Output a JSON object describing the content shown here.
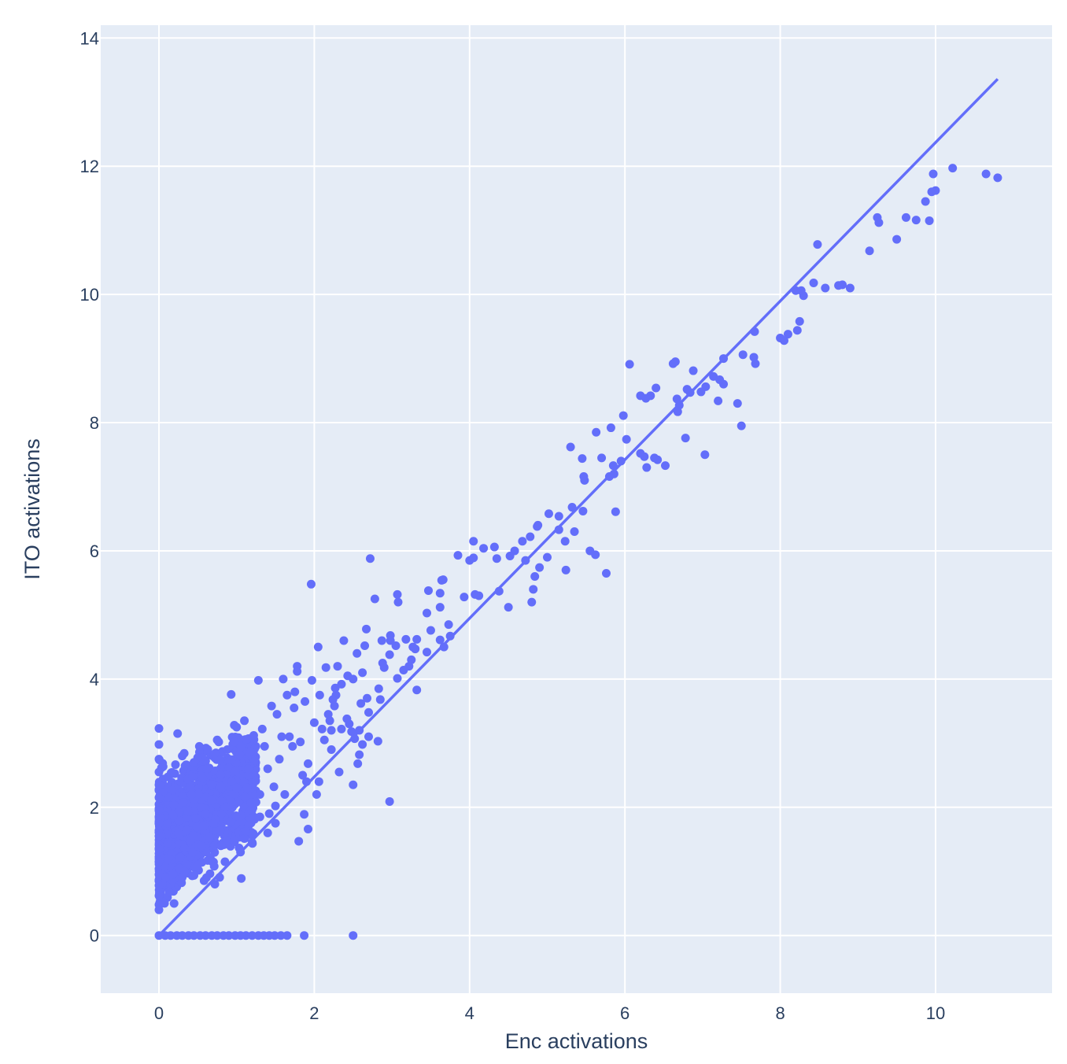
{
  "chart_data": {
    "type": "scatter",
    "xlabel": "Enc activations",
    "ylabel": "ITO activations",
    "xlim": [
      -0.75,
      11.5
    ],
    "ylim": [
      -0.9,
      14.2
    ],
    "xticks": [
      0,
      2,
      4,
      6,
      8,
      10
    ],
    "yticks": [
      0,
      2,
      4,
      6,
      8,
      10,
      12,
      14
    ],
    "grid": true,
    "colors": {
      "plot_bg": "#e5ecf6",
      "grid": "#ffffff",
      "marker": "#636efa",
      "text": "#2a3f5f"
    },
    "series": [
      {
        "mode": "markers",
        "points": [
          [
            10.8,
            11.82
          ],
          [
            10.65,
            11.88
          ],
          [
            10.22,
            11.97
          ],
          [
            10.0,
            11.62
          ],
          [
            9.95,
            11.6
          ],
          [
            9.97,
            11.88
          ],
          [
            9.92,
            11.15
          ],
          [
            9.87,
            11.45
          ],
          [
            9.75,
            11.16
          ],
          [
            9.62,
            11.2
          ],
          [
            9.5,
            10.86
          ],
          [
            9.27,
            11.12
          ],
          [
            9.25,
            11.2
          ],
          [
            9.15,
            10.68
          ],
          [
            8.9,
            10.1
          ],
          [
            8.8,
            10.15
          ],
          [
            8.75,
            10.14
          ],
          [
            8.58,
            10.1
          ],
          [
            8.48,
            10.78
          ],
          [
            8.43,
            10.18
          ],
          [
            8.3,
            9.98
          ],
          [
            8.27,
            10.06
          ],
          [
            8.2,
            10.06
          ],
          [
            8.25,
            9.58
          ],
          [
            8.22,
            9.44
          ],
          [
            8.1,
            9.38
          ],
          [
            8.05,
            9.28
          ],
          [
            8.0,
            9.32
          ],
          [
            7.68,
            8.92
          ],
          [
            7.66,
            9.02
          ],
          [
            7.67,
            9.42
          ],
          [
            7.52,
            9.06
          ],
          [
            7.5,
            7.95
          ],
          [
            7.45,
            8.3
          ],
          [
            7.27,
            9.0
          ],
          [
            7.27,
            8.6
          ],
          [
            7.22,
            8.67
          ],
          [
            7.2,
            8.34
          ],
          [
            7.14,
            8.72
          ],
          [
            7.04,
            8.56
          ],
          [
            7.03,
            7.5
          ],
          [
            6.98,
            8.48
          ],
          [
            6.88,
            8.81
          ],
          [
            6.84,
            8.47
          ],
          [
            6.8,
            8.52
          ],
          [
            6.78,
            7.76
          ],
          [
            6.7,
            8.27
          ],
          [
            6.68,
            8.17
          ],
          [
            6.67,
            8.37
          ],
          [
            6.65,
            8.95
          ],
          [
            6.62,
            8.92
          ],
          [
            6.52,
            7.33
          ],
          [
            6.42,
            7.42
          ],
          [
            6.4,
            8.54
          ],
          [
            6.38,
            7.45
          ],
          [
            6.33,
            8.42
          ],
          [
            6.27,
            8.38
          ],
          [
            6.28,
            7.3
          ],
          [
            6.25,
            7.47
          ],
          [
            6.2,
            7.52
          ],
          [
            6.2,
            8.42
          ],
          [
            6.06,
            8.91
          ],
          [
            6.02,
            7.74
          ],
          [
            5.98,
            8.11
          ],
          [
            5.95,
            7.4
          ],
          [
            5.88,
            6.61
          ],
          [
            5.86,
            7.2
          ],
          [
            5.85,
            7.33
          ],
          [
            5.82,
            7.92
          ],
          [
            5.8,
            7.16
          ],
          [
            5.76,
            5.65
          ],
          [
            5.7,
            7.45
          ],
          [
            5.63,
            7.85
          ],
          [
            5.62,
            5.94
          ],
          [
            5.55,
            6.0
          ],
          [
            5.48,
            7.1
          ],
          [
            5.47,
            7.16
          ],
          [
            5.46,
            6.62
          ],
          [
            5.45,
            7.44
          ],
          [
            5.35,
            6.3
          ],
          [
            5.32,
            6.68
          ],
          [
            5.3,
            7.62
          ],
          [
            5.24,
            5.7
          ],
          [
            5.23,
            6.15
          ],
          [
            5.15,
            6.33
          ],
          [
            5.15,
            6.54
          ],
          [
            5.02,
            6.58
          ],
          [
            5.0,
            5.9
          ],
          [
            4.9,
            5.74
          ],
          [
            4.88,
            6.4
          ],
          [
            4.87,
            6.38
          ],
          [
            4.84,
            5.6
          ],
          [
            4.82,
            5.4
          ],
          [
            4.8,
            5.2
          ],
          [
            4.78,
            6.22
          ],
          [
            4.72,
            5.85
          ],
          [
            4.68,
            6.15
          ],
          [
            4.58,
            6.0
          ],
          [
            4.52,
            5.92
          ],
          [
            4.5,
            5.12
          ],
          [
            4.38,
            5.37
          ],
          [
            4.35,
            5.88
          ],
          [
            4.32,
            6.06
          ],
          [
            4.18,
            6.04
          ],
          [
            4.12,
            5.3
          ],
          [
            4.07,
            5.32
          ],
          [
            4.05,
            5.89
          ],
          [
            4.05,
            6.15
          ],
          [
            4.0,
            5.85
          ],
          [
            3.93,
            5.28
          ],
          [
            3.85,
            5.93
          ],
          [
            3.75,
            4.67
          ],
          [
            3.73,
            4.85
          ],
          [
            3.67,
            4.5
          ],
          [
            3.66,
            5.55
          ],
          [
            3.64,
            5.54
          ],
          [
            3.62,
            4.61
          ],
          [
            3.62,
            5.12
          ],
          [
            3.62,
            5.34
          ],
          [
            3.5,
            4.76
          ],
          [
            3.47,
            5.38
          ],
          [
            3.45,
            4.42
          ],
          [
            3.45,
            5.03
          ],
          [
            3.32,
            4.62
          ],
          [
            3.32,
            3.83
          ],
          [
            3.3,
            4.47
          ],
          [
            3.27,
            4.5
          ],
          [
            3.25,
            4.3
          ],
          [
            3.22,
            4.2
          ],
          [
            3.18,
            4.62
          ],
          [
            3.15,
            4.14
          ],
          [
            3.05,
            4.52
          ],
          [
            3.07,
            4.01
          ],
          [
            3.08,
            5.2
          ],
          [
            3.07,
            5.32
          ],
          [
            2.98,
            4.6
          ],
          [
            2.98,
            4.68
          ],
          [
            2.97,
            4.38
          ],
          [
            2.97,
            2.09
          ],
          [
            2.9,
            4.18
          ],
          [
            2.88,
            4.25
          ],
          [
            2.87,
            4.6
          ],
          [
            2.85,
            3.68
          ],
          [
            2.83,
            3.85
          ],
          [
            2.82,
            3.03
          ],
          [
            2.78,
            5.25
          ],
          [
            2.72,
            5.88
          ],
          [
            2.7,
            3.1
          ],
          [
            2.7,
            3.48
          ],
          [
            2.68,
            3.7
          ],
          [
            2.67,
            4.78
          ],
          [
            2.65,
            4.52
          ],
          [
            2.62,
            2.98
          ],
          [
            2.62,
            4.1
          ],
          [
            2.6,
            3.62
          ],
          [
            2.58,
            3.2
          ],
          [
            2.58,
            2.82
          ],
          [
            2.56,
            2.68
          ],
          [
            2.55,
            4.4
          ],
          [
            2.52,
            3.07
          ],
          [
            2.5,
            2.35
          ],
          [
            2.5,
            4.0
          ],
          [
            2.48,
            3.18
          ],
          [
            2.45,
            3.3
          ],
          [
            2.43,
            4.05
          ],
          [
            2.42,
            3.38
          ],
          [
            2.38,
            4.6
          ],
          [
            2.35,
            3.22
          ],
          [
            2.35,
            3.92
          ],
          [
            2.32,
            2.55
          ],
          [
            2.3,
            4.2
          ],
          [
            2.28,
            3.75
          ],
          [
            2.27,
            3.86
          ],
          [
            2.26,
            3.58
          ],
          [
            2.24,
            3.68
          ],
          [
            2.22,
            3.2
          ],
          [
            2.22,
            2.9
          ],
          [
            2.2,
            3.35
          ],
          [
            2.18,
            3.45
          ],
          [
            2.15,
            4.18
          ],
          [
            2.13,
            3.05
          ],
          [
            2.1,
            3.22
          ],
          [
            2.07,
            3.75
          ],
          [
            2.06,
            2.4
          ],
          [
            2.05,
            4.5
          ],
          [
            2.03,
            2.2
          ],
          [
            2.0,
            3.32
          ],
          [
            1.97,
            3.98
          ],
          [
            1.96,
            5.48
          ],
          [
            1.92,
            1.66
          ],
          [
            1.92,
            2.68
          ],
          [
            1.9,
            2.4
          ],
          [
            1.88,
            3.65
          ],
          [
            1.87,
            1.89
          ],
          [
            1.85,
            2.5
          ],
          [
            1.82,
            3.02
          ],
          [
            1.8,
            1.47
          ],
          [
            1.78,
            4.2
          ],
          [
            1.78,
            4.12
          ],
          [
            1.75,
            3.8
          ],
          [
            1.74,
            3.55
          ],
          [
            1.72,
            2.95
          ],
          [
            1.68,
            3.1
          ],
          [
            1.65,
            3.75
          ],
          [
            1.62,
            2.2
          ],
          [
            1.6,
            4.0
          ],
          [
            1.58,
            3.1
          ],
          [
            1.55,
            2.75
          ],
          [
            1.52,
            3.45
          ],
          [
            1.5,
            2.02
          ],
          [
            1.48,
            2.32
          ],
          [
            1.45,
            3.58
          ],
          [
            1.42,
            1.9
          ],
          [
            1.4,
            2.6
          ],
          [
            1.36,
            2.95
          ],
          [
            1.33,
            3.22
          ],
          [
            1.3,
            1.85
          ],
          [
            1.28,
            3.98
          ],
          [
            1.25,
            2.08
          ],
          [
            1.22,
            3.12
          ],
          [
            1.15,
            2.5
          ],
          [
            1.1,
            3.35
          ],
          [
            1.06,
            0.89
          ],
          [
            1.0,
            3.25
          ],
          [
            0.97,
            3.28
          ],
          [
            0.93,
            3.76
          ],
          [
            0.72,
            0.8
          ],
          [
            2.5,
            0.0
          ],
          [
            1.87,
            0.0
          ],
          [
            1.65,
            0.0
          ],
          [
            1.57,
            0.0
          ],
          [
            1.49,
            0.0
          ],
          [
            1.42,
            0.0
          ],
          [
            1.35,
            0.0
          ],
          [
            1.28,
            0.0
          ],
          [
            1.2,
            0.0
          ],
          [
            1.12,
            0.0
          ],
          [
            1.05,
            0.0
          ],
          [
            0.98,
            0.0
          ],
          [
            0.9,
            0.0
          ],
          [
            0.83,
            0.0
          ],
          [
            0.75,
            0.0
          ],
          [
            0.68,
            0.0
          ],
          [
            0.6,
            0.0
          ],
          [
            0.53,
            0.0
          ],
          [
            0.45,
            0.0
          ],
          [
            0.38,
            0.0
          ],
          [
            0.3,
            0.0
          ],
          [
            0.23,
            0.0
          ],
          [
            0.15,
            0.0
          ],
          [
            0.08,
            0.0
          ],
          [
            0.0,
            0.0
          ],
          [
            0.0,
            3.23
          ],
          [
            0.0,
            2.98
          ],
          [
            0.0,
            2.75
          ],
          [
            0.0,
            2.55
          ],
          [
            0.0,
            2.35
          ],
          [
            0.0,
            2.15
          ],
          [
            0.0,
            1.95
          ],
          [
            0.0,
            1.75
          ],
          [
            0.0,
            1.55
          ],
          [
            0.0,
            1.35
          ],
          [
            0.0,
            1.15
          ],
          [
            0.0,
            0.95
          ],
          [
            0.0,
            0.78
          ],
          [
            0.0,
            0.62
          ],
          [
            0.0,
            0.48
          ],
          [
            0.0,
            0.4
          ],
          [
            0.24,
            3.15
          ],
          [
            0.3,
            2.8
          ],
          [
            0.45,
            2.7
          ],
          [
            0.52,
            2.95
          ],
          [
            0.62,
            2.6
          ],
          [
            0.75,
            3.05
          ],
          [
            0.88,
            2.9
          ],
          [
            0.94,
            2.4
          ],
          [
            0.33,
            1.0
          ],
          [
            0.18,
            0.95
          ],
          [
            0.12,
            1.2
          ],
          [
            0.5,
            1.1
          ],
          [
            0.85,
            1.15
          ],
          [
            1.05,
            1.3
          ],
          [
            1.2,
            1.45
          ],
          [
            1.4,
            1.6
          ],
          [
            1.5,
            1.75
          ],
          [
            0.42,
            2.2
          ],
          [
            0.6,
            1.9
          ],
          [
            0.8,
            2.1
          ],
          [
            1.0,
            2.3
          ],
          [
            1.15,
            2.6
          ],
          [
            1.3,
            2.2
          ],
          [
            0.25,
            1.6
          ],
          [
            0.55,
            1.4
          ],
          [
            0.7,
            1.75
          ]
        ]
      },
      {
        "mode": "lines",
        "points": [
          [
            0,
            0
          ],
          [
            10.8,
            13.36
          ]
        ]
      }
    ]
  }
}
